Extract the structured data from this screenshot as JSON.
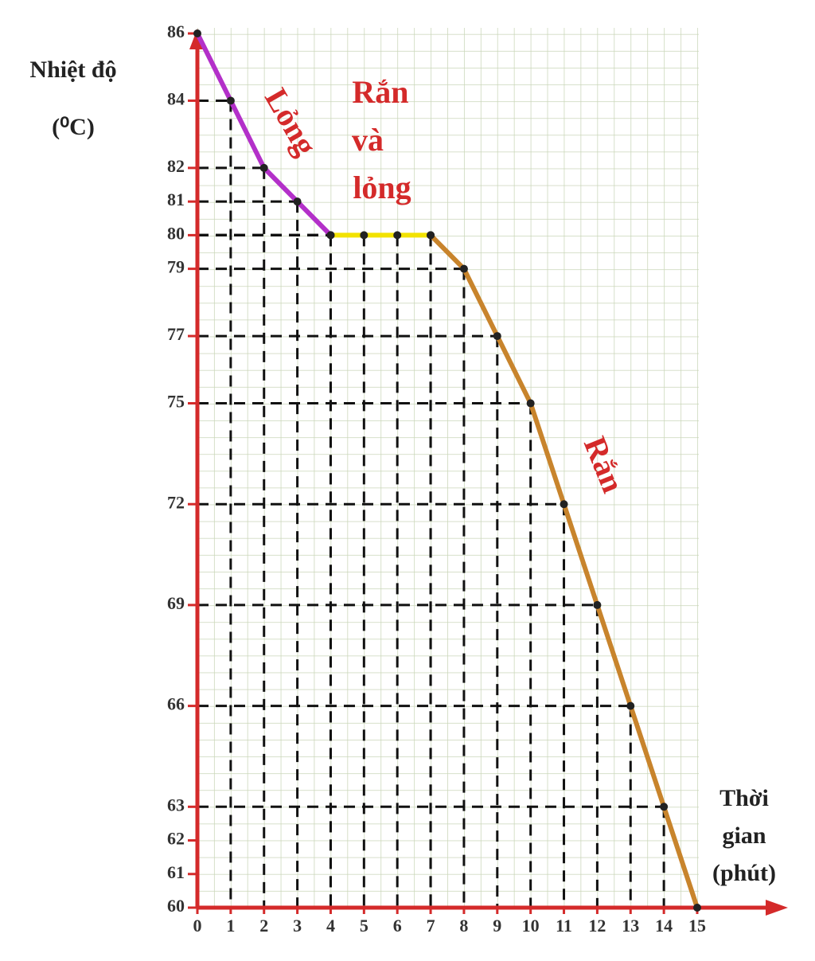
{
  "chart_data": {
    "type": "line",
    "y_label": [
      "Nhiệt độ",
      "(⁰C)"
    ],
    "x_label": [
      "Thời",
      "gian",
      "(phút)"
    ],
    "annotations": [
      "Lỏng",
      "Rắn",
      "và",
      "lỏng",
      "Rắn"
    ],
    "x": [
      0,
      1,
      2,
      3,
      4,
      5,
      6,
      7,
      8,
      9,
      10,
      11,
      12,
      13,
      14,
      15
    ],
    "series": [
      {
        "color": "#b330c9",
        "values": [
          86,
          84,
          82,
          81,
          80,
          null,
          null,
          null,
          null,
          null,
          null,
          null,
          null,
          null,
          null,
          null
        ]
      },
      {
        "color": "#f2e200",
        "values": [
          null,
          null,
          null,
          null,
          80,
          80,
          80,
          80,
          null,
          null,
          null,
          null,
          null,
          null,
          null,
          null
        ]
      },
      {
        "color": "#c8842c",
        "values": [
          null,
          null,
          null,
          null,
          null,
          null,
          null,
          80,
          79,
          77,
          75,
          72,
          69,
          66,
          63,
          60
        ]
      }
    ],
    "xlim": [
      0,
      15
    ],
    "ylim": [
      60,
      86
    ],
    "xticks": [
      0,
      1,
      2,
      3,
      4,
      5,
      6,
      7,
      8,
      9,
      10,
      11,
      12,
      13,
      14,
      15
    ],
    "yticks": [
      60,
      61,
      62,
      63,
      66,
      69,
      72,
      75,
      77,
      79,
      80,
      81,
      82,
      84,
      86
    ],
    "axis_color": "#d42a2a",
    "marker_color": "#222222",
    "grid": true
  }
}
